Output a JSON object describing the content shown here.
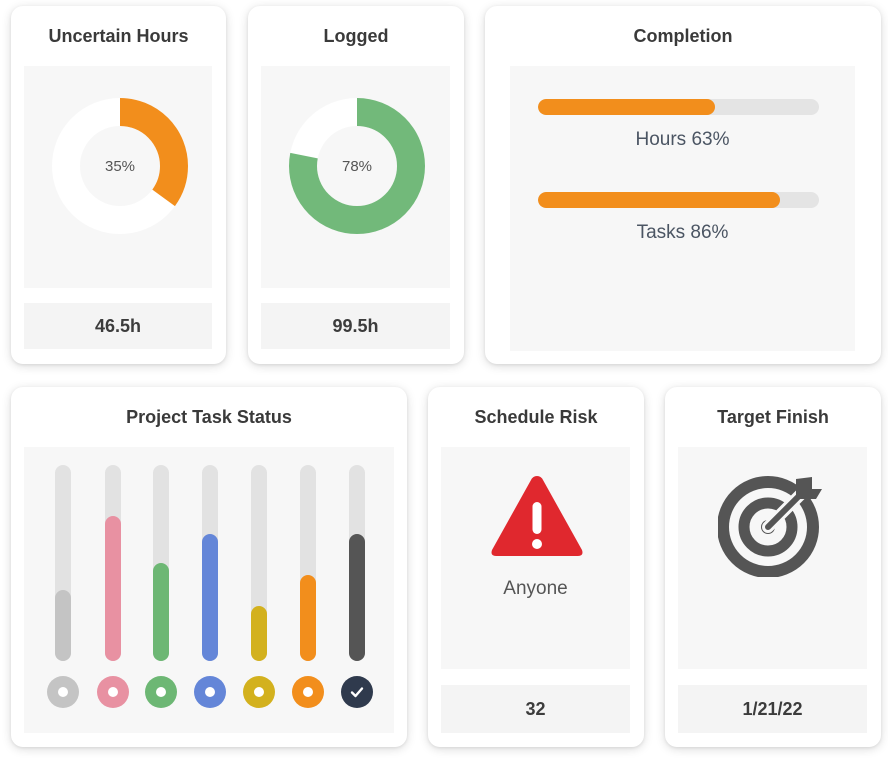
{
  "cards": {
    "uncertain_hours": {
      "title": "Uncertain Hours",
      "percent_label": "35%",
      "percent": 0.35,
      "color": "#F28E1C",
      "value": "46.5h"
    },
    "logged": {
      "title": "Logged",
      "percent_label": "78%",
      "percent": 0.78,
      "color": "#72B97A",
      "value": "99.5h"
    },
    "completion": {
      "title": "Completion",
      "bars": [
        {
          "label": "Hours 63%",
          "fraction": 0.63,
          "color": "#F28E1C"
        },
        {
          "label": "Tasks 86%",
          "fraction": 0.86,
          "color": "#F28E1C"
        }
      ]
    },
    "project_task_status": {
      "title": "Project Task Status",
      "columns": [
        {
          "fraction": 0.36,
          "color": "#C4C4C4",
          "icon": "circle-dot-icon"
        },
        {
          "fraction": 0.74,
          "color": "#E891A2",
          "icon": "circle-dot-icon"
        },
        {
          "fraction": 0.5,
          "color": "#6DB774",
          "icon": "circle-dot-icon"
        },
        {
          "fraction": 0.65,
          "color": "#6486D8",
          "icon": "circle-dot-icon"
        },
        {
          "fraction": 0.28,
          "color": "#D3B11E",
          "icon": "circle-dot-icon"
        },
        {
          "fraction": 0.44,
          "color": "#F28E1C",
          "icon": "circle-dot-icon"
        },
        {
          "fraction": 0.65,
          "color": "#555555",
          "icon": "check-icon"
        }
      ]
    },
    "schedule_risk": {
      "title": "Schedule Risk",
      "icon": "warning-icon",
      "icon_color": "#E0282E",
      "text": "Anyone",
      "value": "32"
    },
    "target_finish": {
      "title": "Target Finish",
      "icon": "target-icon",
      "icon_color": "#555555",
      "value": "1/21/22"
    }
  }
}
